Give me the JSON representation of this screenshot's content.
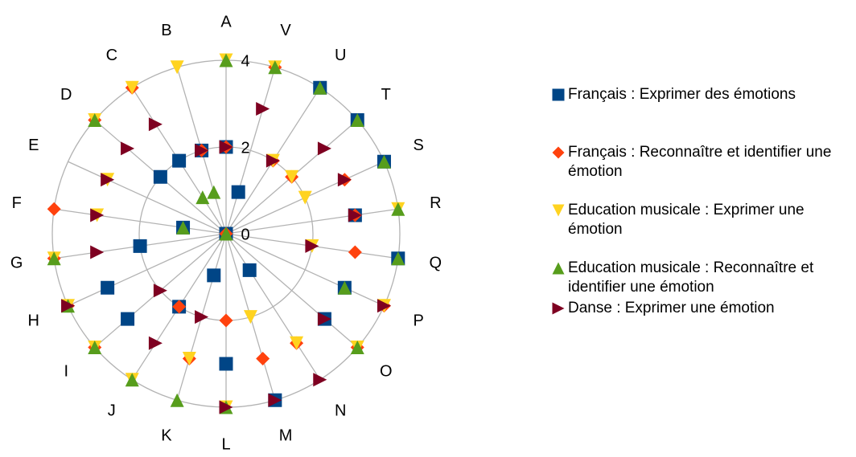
{
  "chart_data": {
    "type": "radar",
    "categories": [
      "A",
      "B",
      "C",
      "D",
      "E",
      "F",
      "G",
      "H",
      "I",
      "J",
      "K",
      "L",
      "M",
      "N",
      "O",
      "P",
      "Q",
      "R",
      "S",
      "T",
      "U",
      "V"
    ],
    "ylim": [
      0,
      4
    ],
    "yticks": [
      0,
      2,
      4
    ],
    "grid": true,
    "legend": "right",
    "series": [
      {
        "name": "Français : Exprimer des émotions",
        "color": "#004586",
        "marker": "square",
        "values": [
          2,
          2,
          2,
          2,
          0,
          1,
          2,
          3,
          3,
          2,
          1,
          3,
          4,
          1,
          3,
          3,
          4,
          3,
          4,
          4,
          4,
          1
        ]
      },
      {
        "name": "Français : Reconnaître et identifier une émotion",
        "color": "#ff420e",
        "marker": "diamond",
        "values": [
          2,
          2,
          4,
          4,
          0,
          4,
          4,
          4,
          4,
          2,
          3,
          2,
          3,
          3,
          4,
          4,
          3,
          3,
          3,
          2,
          2,
          4
        ]
      },
      {
        "name": "Education musicale : Exprimer une émotion",
        "color": "#ffd320",
        "marker": "triangle-down",
        "values": [
          4,
          4,
          4,
          4,
          3,
          3,
          4,
          4,
          4,
          4,
          3,
          4,
          2,
          3,
          4,
          4,
          2,
          4,
          2,
          2,
          2,
          4
        ]
      },
      {
        "name": "Education musicale : Reconnaître et identifier une émotion",
        "color": "#579d1c",
        "marker": "triangle-up",
        "values": [
          4,
          1,
          1,
          4,
          0,
          1,
          4,
          4,
          4,
          4,
          4,
          4,
          0,
          0,
          4,
          3,
          4,
          4,
          4,
          4,
          4,
          4
        ]
      },
      {
        "name": "Danse : Exprimer une émotion",
        "color": "#7e0021",
        "marker": "triangle-right",
        "values": [
          2,
          2,
          3,
          3,
          3,
          3,
          3,
          4,
          2,
          3,
          2,
          4,
          4,
          4,
          3,
          4,
          2,
          3,
          3,
          3,
          2,
          3
        ]
      }
    ]
  }
}
